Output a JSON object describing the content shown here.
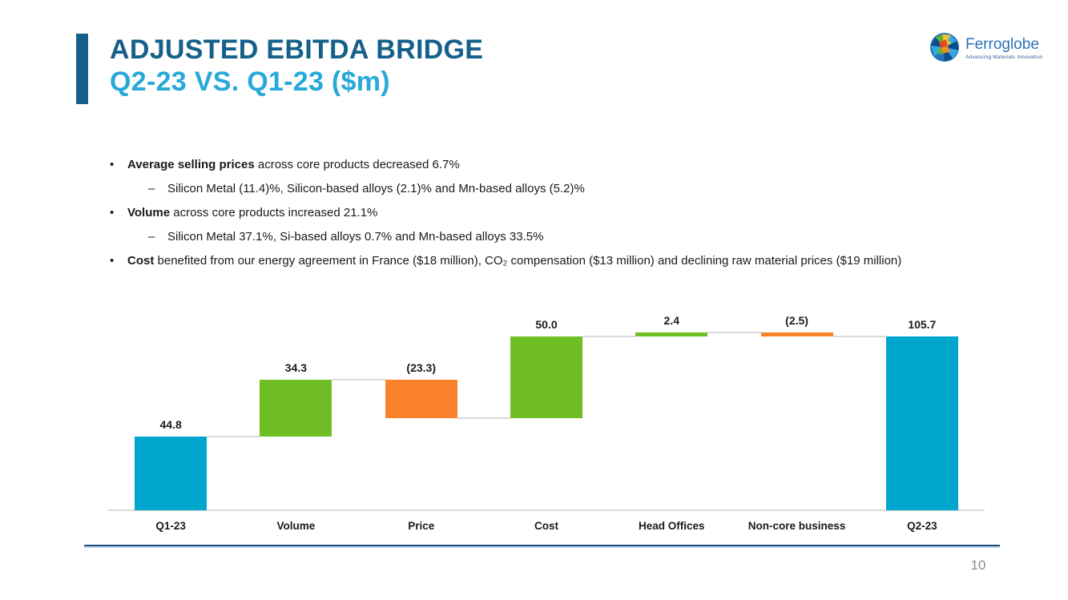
{
  "slide": {
    "title_line1": "ADJUSTED EBITDA BRIDGE",
    "title_line2": "Q2-23 VS. Q1-23 ($m)",
    "page_number": "10"
  },
  "logo": {
    "name": "Ferroglobe",
    "tagline": "Advancing Materials Innovation"
  },
  "markers": {
    "bullet": "•",
    "dash": "–"
  },
  "bullets": [
    {
      "lead": "Average selling prices",
      "rest": " across core products decreased 6.7%",
      "subs": [
        "Silicon Metal (11.4)%, Silicon-based alloys (2.1)% and Mn-based alloys (5.2)%"
      ]
    },
    {
      "lead": "Volume",
      "rest": " across core products increased 21.1%",
      "subs": [
        "Silicon Metal 37.1%, Si-based alloys 0.7% and Mn-based alloys 33.5%"
      ]
    },
    {
      "lead": "Cost",
      "rest": " benefited from our energy agreement in France ($18 million), CO₂ compensation ($13 million) and declining raw material prices ($19 million)",
      "subs": []
    }
  ],
  "chart_data": {
    "type": "bar",
    "subtype": "waterfall",
    "title": "",
    "xlabel": "",
    "ylabel": "",
    "categories": [
      "Q1-23",
      "Volume",
      "Price",
      "Cost",
      "Head Offices",
      "Non-core business",
      "Q2-23"
    ],
    "items": [
      {
        "label": "Q1-23",
        "value": 44.8,
        "display": "44.8",
        "kind": "total"
      },
      {
        "label": "Volume",
        "value": 34.3,
        "display": "34.3",
        "kind": "increase"
      },
      {
        "label": "Price",
        "value": -23.3,
        "display": "(23.3)",
        "kind": "decrease"
      },
      {
        "label": "Cost",
        "value": 50.0,
        "display": "50.0",
        "kind": "increase"
      },
      {
        "label": "Head Offices",
        "value": 2.4,
        "display": "2.4",
        "kind": "increase"
      },
      {
        "label": "Non-core business",
        "value": -2.5,
        "display": "(2.5)",
        "kind": "decrease"
      },
      {
        "label": "Q2-23",
        "value": 105.7,
        "display": "105.7",
        "kind": "total"
      }
    ],
    "running_totals": [
      44.8,
      79.1,
      55.8,
      105.8,
      108.2,
      105.7,
      105.7
    ],
    "ylim": [
      0,
      127.5
    ],
    "grid": false,
    "legend": false,
    "colors": {
      "total": "#00A6CE",
      "increase": "#6FBE26",
      "decrease": "#FB822C"
    },
    "connector_color": "#D9D9D9",
    "axis_color": "#D9D9D9",
    "label_color": "#1A1A1A"
  }
}
